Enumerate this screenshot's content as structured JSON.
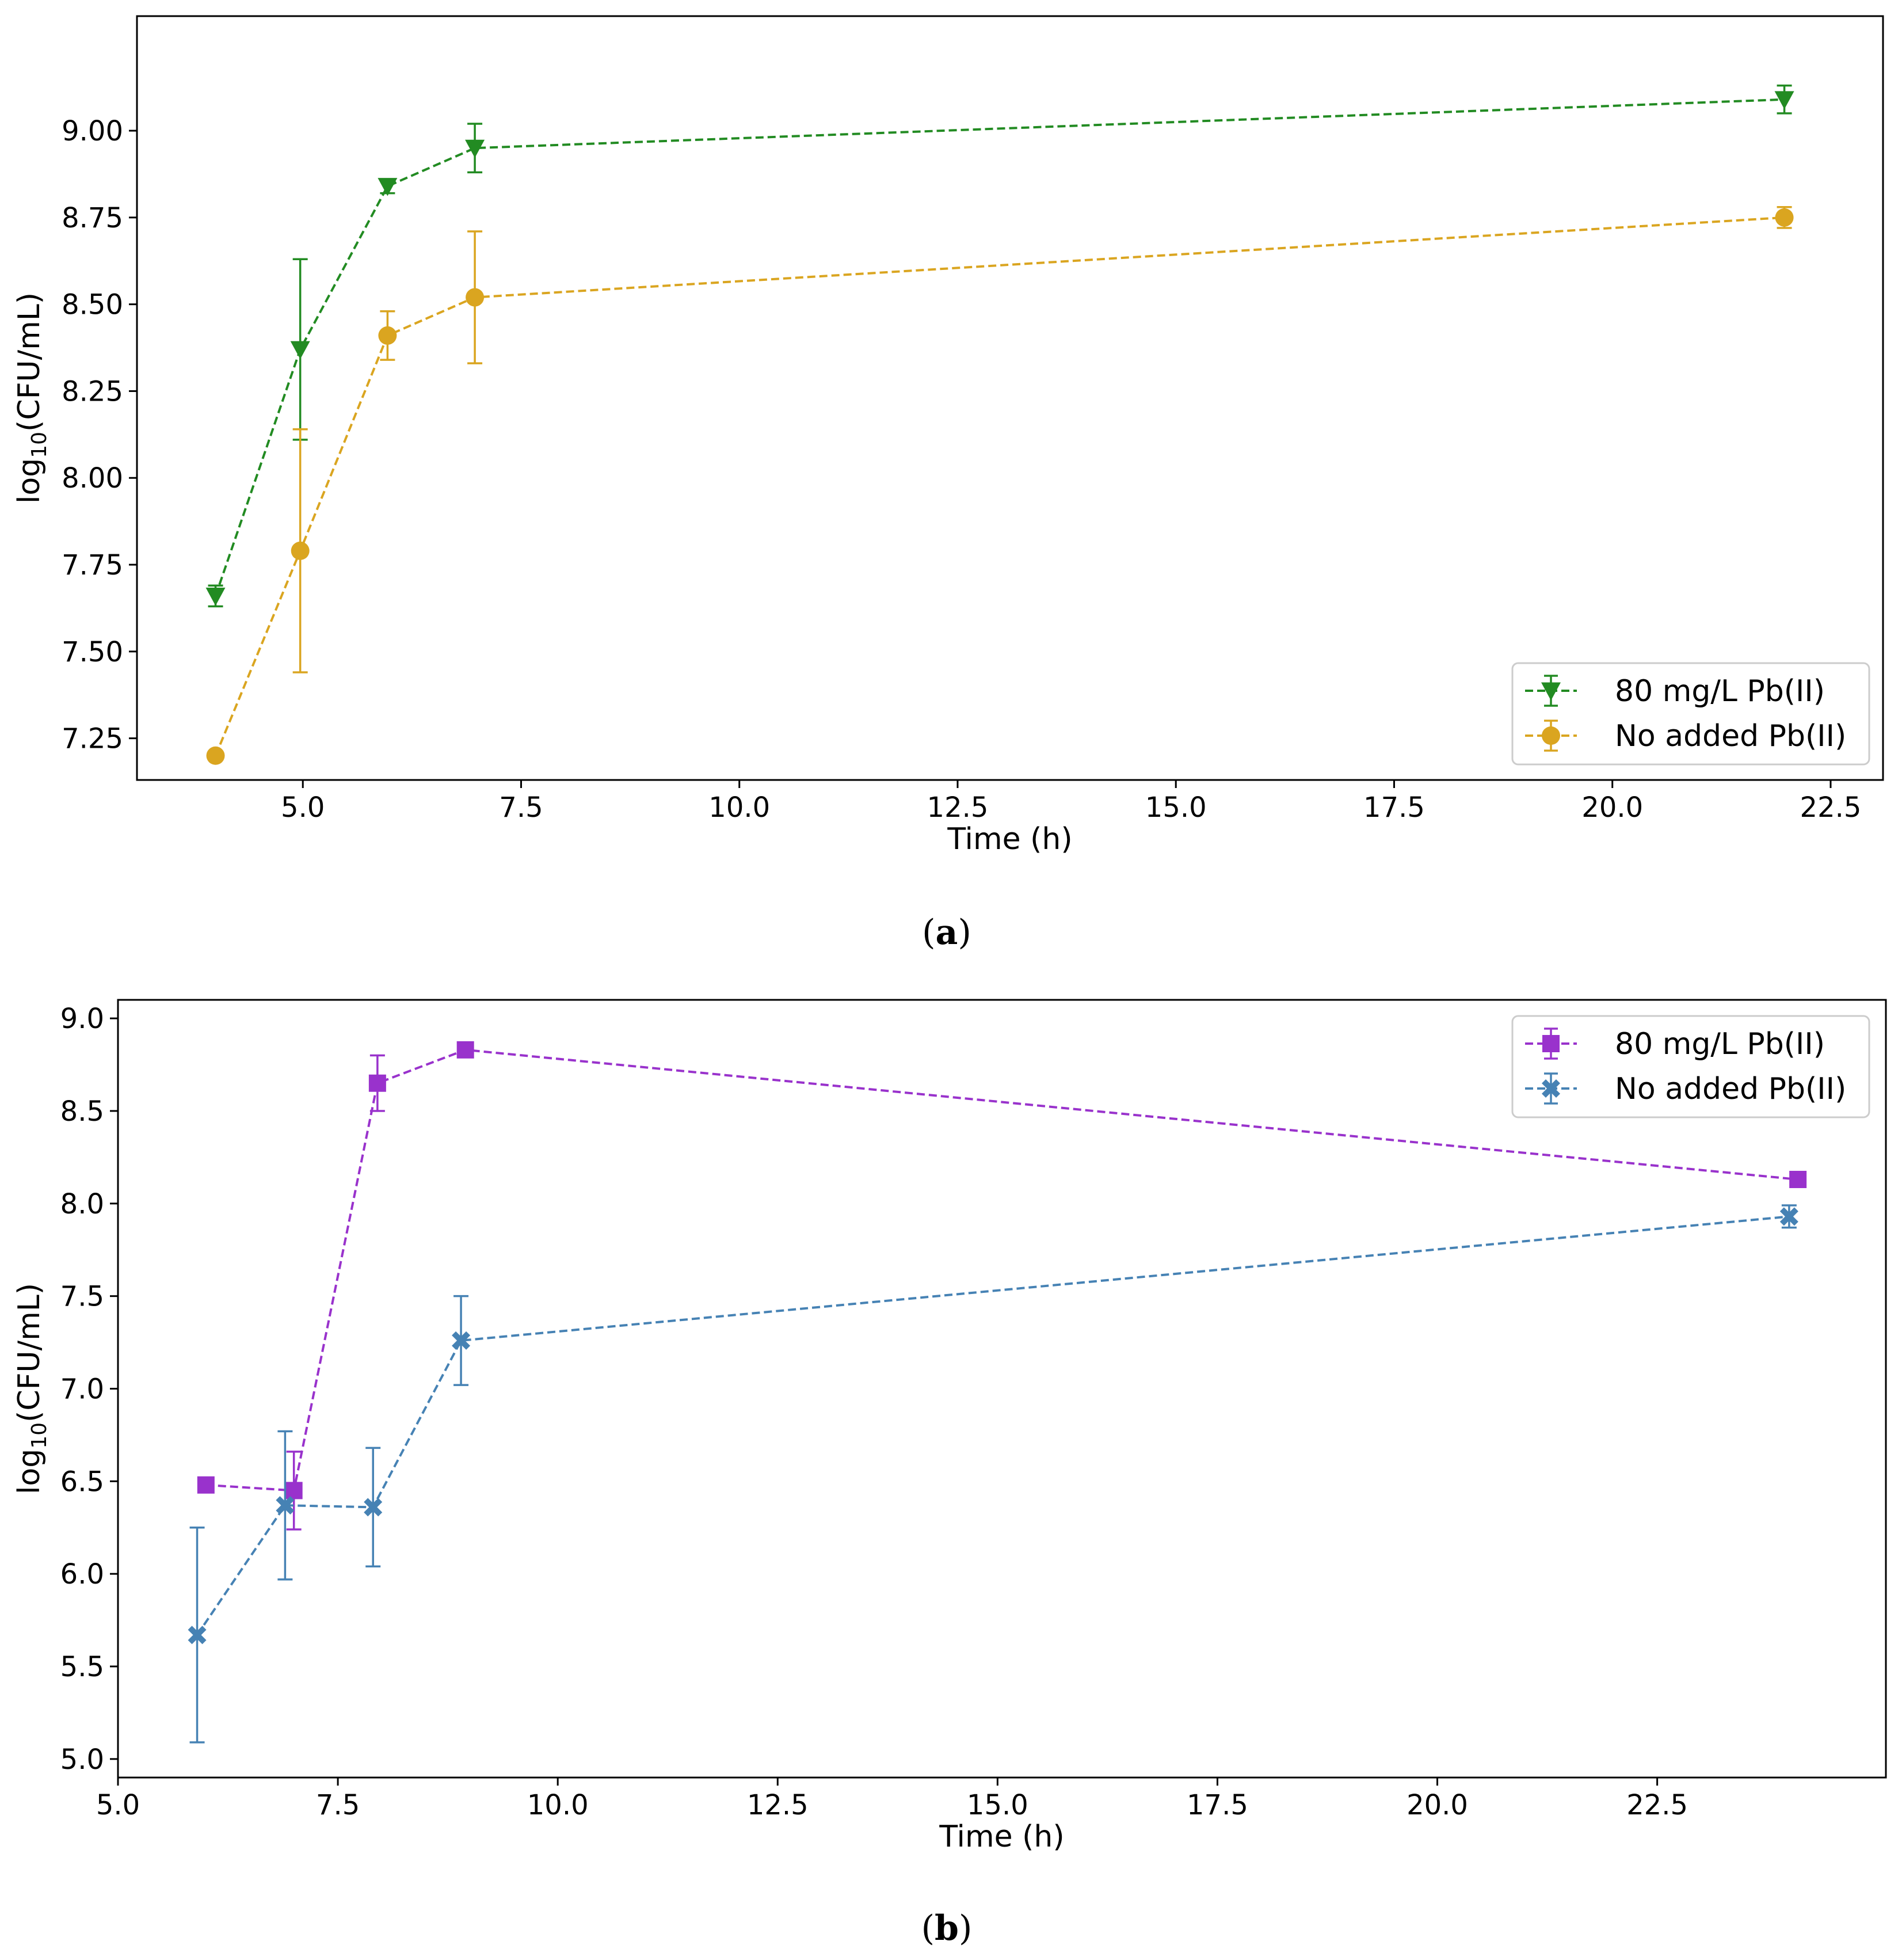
{
  "chart_data": [
    {
      "type": "line",
      "panel_label": "a",
      "xlabel": "Time (h)",
      "ylabel_base": "log",
      "ylabel_sub": "10",
      "ylabel_rest": "(CFU/mL)",
      "xlim": [
        3.1,
        23.1
      ],
      "ylim": [
        7.13,
        9.33
      ],
      "xticks": [
        5.0,
        7.5,
        10.0,
        12.5,
        15.0,
        17.5,
        20.0,
        22.5
      ],
      "xtick_labels": [
        "5.0",
        "7.5",
        "10.0",
        "12.5",
        "15.0",
        "17.5",
        "20.0",
        "22.5"
      ],
      "yticks": [
        7.25,
        7.5,
        7.75,
        8.0,
        8.25,
        8.5,
        8.75,
        9.0
      ],
      "ytick_labels": [
        "7.25",
        "7.50",
        "7.75",
        "8.00",
        "8.25",
        "8.50",
        "8.75",
        "9.00"
      ],
      "legend_position": "lower-right",
      "series": [
        {
          "name": "80 mg/L Pb(II)",
          "color": "#228B22",
          "marker": "triangle-down",
          "x": [
            4.0,
            4.97,
            5.97,
            6.97,
            21.97
          ],
          "y": [
            7.66,
            8.37,
            8.84,
            8.95,
            9.09
          ],
          "err": [
            0.03,
            0.26,
            0.02,
            0.07,
            0.04
          ]
        },
        {
          "name": "No added Pb(II)",
          "color": "#DAA520",
          "marker": "circle",
          "x": [
            4.0,
            4.97,
            5.97,
            6.97,
            21.97
          ],
          "y": [
            7.2,
            7.79,
            8.41,
            8.52,
            8.75
          ],
          "err": [
            0.01,
            0.35,
            0.07,
            0.19,
            0.03
          ]
        }
      ]
    },
    {
      "type": "line",
      "panel_label": "b",
      "xlabel": "Time (h)",
      "ylabel_base": "log",
      "ylabel_sub": "10",
      "ylabel_rest": "(CFU/mL)",
      "xlim": [
        5.0,
        25.1
      ],
      "ylim": [
        4.9,
        9.1
      ],
      "xticks": [
        5.0,
        7.5,
        10.0,
        12.5,
        15.0,
        17.5,
        20.0,
        22.5
      ],
      "xtick_labels": [
        "5.0",
        "7.5",
        "10.0",
        "12.5",
        "15.0",
        "17.5",
        "20.0",
        "22.5"
      ],
      "yticks": [
        5.0,
        5.5,
        6.0,
        6.5,
        7.0,
        7.5,
        8.0,
        8.5,
        9.0
      ],
      "ytick_labels": [
        "5.0",
        "5.5",
        "6.0",
        "6.5",
        "7.0",
        "7.5",
        "8.0",
        "8.5",
        "9.0"
      ],
      "legend_position": "upper-right",
      "series": [
        {
          "name": "80 mg/L Pb(II)",
          "color": "#9932CC",
          "marker": "square",
          "x": [
            6.0,
            7.0,
            7.95,
            8.95,
            24.1
          ],
          "y": [
            6.48,
            6.45,
            8.65,
            8.83,
            8.13
          ],
          "err": [
            0.0,
            0.21,
            0.15,
            0.0,
            0.0
          ]
        },
        {
          "name": "No added Pb(II)",
          "color": "#4682B4",
          "marker": "x-filled",
          "x": [
            5.9,
            6.9,
            7.9,
            8.9,
            24.0
          ],
          "y": [
            5.67,
            6.37,
            6.36,
            7.26,
            7.93
          ],
          "err": [
            0.58,
            0.4,
            0.32,
            0.24,
            0.06
          ]
        }
      ]
    }
  ]
}
